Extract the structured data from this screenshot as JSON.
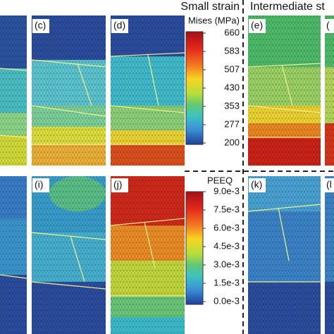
{
  "header": {
    "small": "Small strain",
    "intermediate": "Intermediate st"
  },
  "panels": {
    "top": [
      "(c)",
      "(d)",
      "(e)",
      "("
    ],
    "bottom": [
      "(i)",
      "(j)",
      "(k)",
      "(l"
    ]
  },
  "mises_bar": {
    "title": "Mises (MPa)",
    "labels": [
      "660",
      "583",
      "507",
      "430",
      "353",
      "277",
      "200"
    ]
  },
  "peeq_bar": {
    "title": "PEEQ",
    "labels": [
      "9.0e-3",
      "7.5e-3",
      "6.0e-3",
      "4.5e-3",
      "3.0e-3",
      "1.5e-3",
      "0.0e-3"
    ]
  }
}
